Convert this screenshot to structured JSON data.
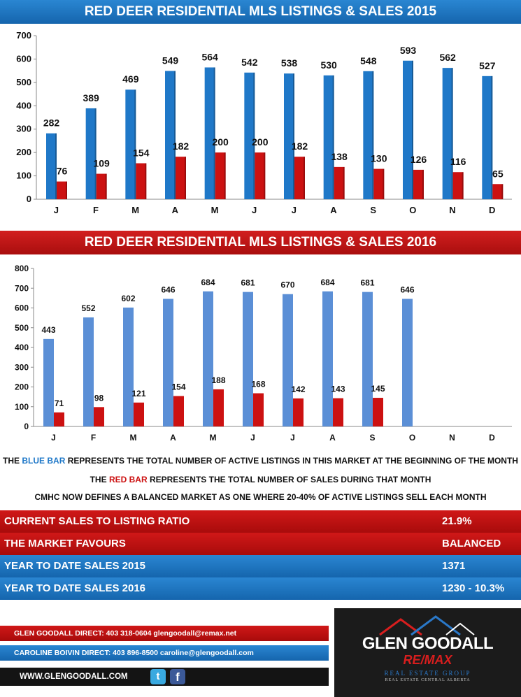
{
  "charts": [
    {
      "title": "RED DEER RESIDENTIAL MLS LISTINGS & SALES 2015",
      "banner_color": "#1f6fbf"
    },
    {
      "title": "RED DEER RESIDENTIAL MLS LISTINGS & SALES 2016",
      "banner_color": "#c01515"
    }
  ],
  "chart_data": [
    {
      "type": "bar",
      "title": "RED DEER RESIDENTIAL MLS LISTINGS & SALES 2015",
      "categories": [
        "J",
        "F",
        "M",
        "A",
        "M",
        "J",
        "J",
        "A",
        "S",
        "O",
        "N",
        "D"
      ],
      "series": [
        {
          "color": "#1f78c8",
          "values": [
            282,
            389,
            469,
            549,
            564,
            542,
            538,
            530,
            548,
            593,
            562,
            527
          ]
        },
        {
          "color": "#cc1111",
          "values": [
            76,
            109,
            154,
            182,
            200,
            200,
            182,
            138,
            130,
            126,
            116,
            65
          ]
        }
      ],
      "yticks": [
        0,
        100,
        200,
        300,
        400,
        500,
        600,
        700
      ],
      "ylim": [
        0,
        700
      ]
    },
    {
      "type": "bar",
      "title": "RED DEER RESIDENTIAL MLS LISTINGS & SALES 2016",
      "categories": [
        "J",
        "F",
        "M",
        "A",
        "M",
        "J",
        "J",
        "A",
        "S",
        "O",
        "N",
        "D"
      ],
      "series": [
        {
          "color": "#5b8fd6",
          "values": [
            443,
            552,
            602,
            646,
            684,
            681,
            670,
            684,
            681,
            646,
            null,
            null
          ]
        },
        {
          "color": "#cc1111",
          "values": [
            71,
            98,
            121,
            154,
            188,
            168,
            142,
            143,
            145,
            null,
            null,
            null
          ]
        }
      ],
      "yticks": [
        0,
        100,
        200,
        300,
        400,
        500,
        600,
        700,
        800
      ],
      "ylim": [
        0,
        800
      ]
    }
  ],
  "legend": {
    "line1_prefix": "THE ",
    "line1_highlight": "BLUE BAR",
    "line1_suffix": " REPRESENTS THE TOTAL NUMBER OF ACTIVE LISTINGS IN THIS MARKET AT THE BEGINNING OF THE MONTH",
    "line2_prefix": "THE ",
    "line2_highlight": "RED BAR",
    "line2_suffix": " REPRESENTS THE TOTAL NUMBER OF SALES DURING THAT MONTH",
    "line3": "CMHC NOW DEFINES A BALANCED MARKET AS ONE WHERE 20-40% OF ACTIVE LISTINGS SELL EACH MONTH"
  },
  "stats": [
    {
      "label": "CURRENT SALES TO LISTING RATIO",
      "value": "21.9%"
    },
    {
      "label": "THE MARKET FAVOURS",
      "value": "BALANCED"
    },
    {
      "label": "YEAR TO DATE SALES 2015",
      "value": "1371"
    },
    {
      "label": "YEAR TO DATE SALES 2016",
      "value": "1230  - 10.3%"
    }
  ],
  "footer": {
    "contact1": "GLEN GOODALL  DIRECT: 403 318-0604  glengoodall@remax.net",
    "contact2": "CAROLINE BOIVIN DIRECT: 403 896-8500 caroline@glengoodall.com",
    "website": "WWW.GLENGOODALL.COM",
    "twitter_icon": "twitter-icon",
    "facebook_icon": "facebook-icon",
    "logo_name": "GLEN GOODALL",
    "logo_brand": "RE/MAX",
    "logo_sub1": "REAL ESTATE GROUP",
    "logo_sub2": "REAL ESTATE CENTRAL ALBERTA"
  },
  "colors": {
    "blue_bar_2015": "#1f78c8",
    "blue_bar_2016": "#5b8fd6",
    "red_bar": "#cc1111",
    "dark": "#1b1b1b"
  }
}
